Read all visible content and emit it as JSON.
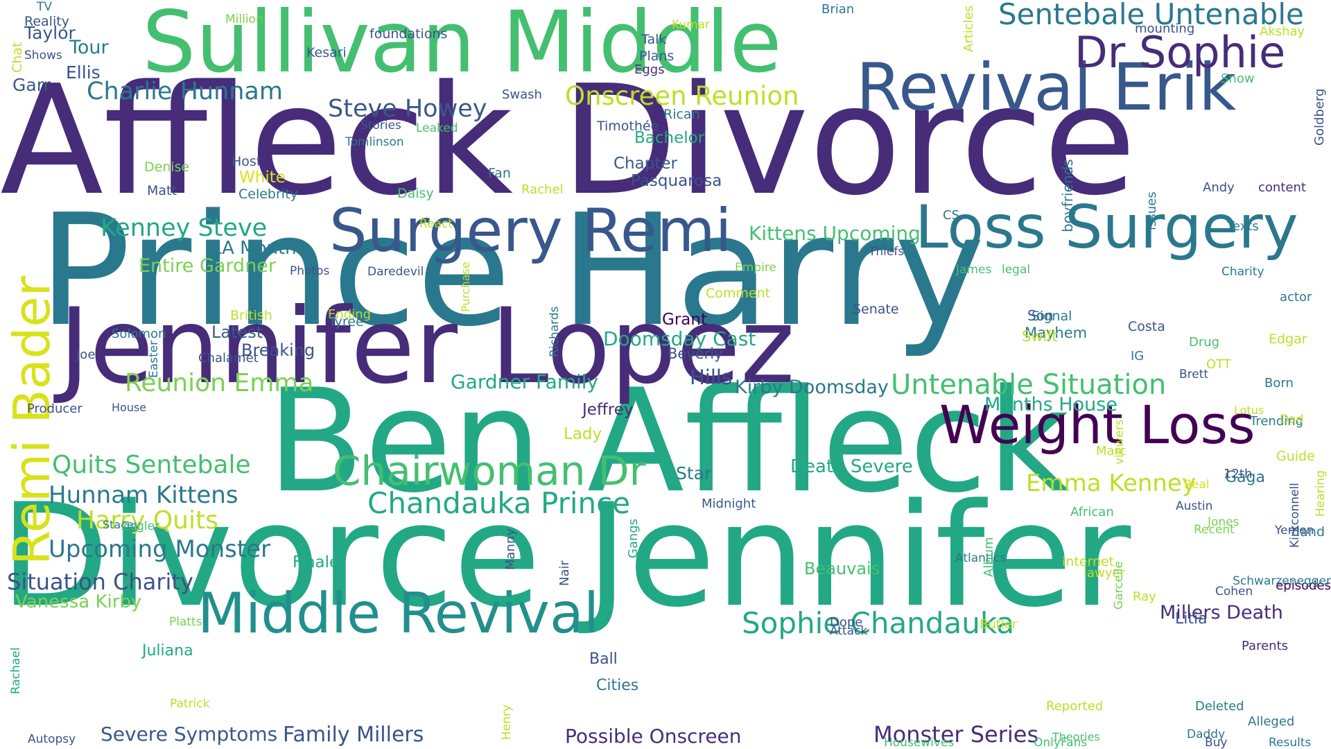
{
  "words": [
    {
      "text": "Prince Harry",
      "color": "#2a788e"
    },
    {
      "text": "Affleck Divorce",
      "color": "#472c7a"
    },
    {
      "text": "Divorce Jennifer",
      "color": "#22a884"
    },
    {
      "text": "Ben Affleck",
      "color": "#22a884"
    },
    {
      "text": "Jennifer Lopez",
      "color": "#472c7a"
    },
    {
      "text": "Sullivan Middle",
      "color": "#44bf70"
    },
    {
      "text": "Revival Erik",
      "color": "#38588c"
    },
    {
      "text": "Surgery Remi",
      "color": "#38588c"
    },
    {
      "text": "Loss Surgery",
      "color": "#2a788e"
    },
    {
      "text": "Weight Loss",
      "color": "#440154"
    },
    {
      "text": "Middle Revival",
      "color": "#21908d"
    },
    {
      "text": "Dr Sophie",
      "color": "#472c7a"
    },
    {
      "text": "Chairwoman Dr",
      "color": "#44bf70"
    },
    {
      "text": "Remi Bader",
      "color": "#d8e219"
    },
    {
      "text": "Sentebale Untenable",
      "color": "#2a788e"
    },
    {
      "text": "Charlie Hunnam",
      "color": "#2a788e"
    },
    {
      "text": "Steve Howey",
      "color": "#38588c"
    },
    {
      "text": "Kenney Steve",
      "color": "#22a884"
    },
    {
      "text": "Onscreen Reunion",
      "color": "#bddf26"
    },
    {
      "text": "Untenable Situation",
      "color": "#44bf70"
    },
    {
      "text": "Sophie Chandauka",
      "color": "#22a884"
    },
    {
      "text": "Chandauka Prince",
      "color": "#22a884"
    },
    {
      "text": "Quits Sentebale",
      "color": "#44bf70"
    },
    {
      "text": "Hunnam Kittens",
      "color": "#2a788e"
    },
    {
      "text": "Harry Quits",
      "color": "#bddf26"
    },
    {
      "text": "Upcoming Monster",
      "color": "#2a788e"
    },
    {
      "text": "Situation Charity",
      "color": "#3b528b"
    },
    {
      "text": "Vanessa Kirby",
      "color": "#7ad151"
    },
    {
      "text": "Reunion Emma",
      "color": "#7ad151"
    },
    {
      "text": "Emma Kenney",
      "color": "#bddf26"
    },
    {
      "text": "Gardner Family",
      "color": "#22a884"
    },
    {
      "text": "Kittens Upcoming",
      "color": "#44bf70"
    },
    {
      "text": "Doomsday Cast",
      "color": "#22a884"
    },
    {
      "text": "Kirby Doomsday",
      "color": "#2a788e"
    },
    {
      "text": "Months House",
      "color": "#22a884"
    },
    {
      "text": "Millers Death",
      "color": "#472c7a"
    },
    {
      "text": "Death Severe",
      "color": "#22a884"
    },
    {
      "text": "Severe Symptoms",
      "color": "#38588c"
    },
    {
      "text": "Family Millers",
      "color": "#3b528b"
    },
    {
      "text": "Monster Series",
      "color": "#472c7a"
    },
    {
      "text": "Possible Onscreen",
      "color": "#472c7a"
    },
    {
      "text": "Entire Gardner",
      "color": "#7ad151"
    },
    {
      "text": "LA Months",
      "color": "#2a788e"
    },
    {
      "text": "Latest",
      "color": "#38588c"
    },
    {
      "text": "Breaking",
      "color": "#3b528b"
    },
    {
      "text": "Tour",
      "color": "#2a788e"
    },
    {
      "text": "Taylor",
      "color": "#38588c"
    },
    {
      "text": "Ellis",
      "color": "#3b528b"
    },
    {
      "text": "Garr",
      "color": "#38588c"
    },
    {
      "text": "White",
      "color": "#d8e219"
    },
    {
      "text": "Hills",
      "color": "#3b528b"
    },
    {
      "text": "Star",
      "color": "#2a788e"
    },
    {
      "text": "Jeffrey",
      "color": "#472c7a"
    },
    {
      "text": "Lady",
      "color": "#bddf26"
    },
    {
      "text": "Beverly",
      "color": "#3b528b"
    },
    {
      "text": "Grant",
      "color": "#440154"
    },
    {
      "text": "Chapter",
      "color": "#38588c"
    },
    {
      "text": "Pasquarosa",
      "color": "#3b528b"
    },
    {
      "text": "Bachelor",
      "color": "#22a884"
    },
    {
      "text": "Finale",
      "color": "#22a884"
    },
    {
      "text": "Beauvais",
      "color": "#44bf70"
    },
    {
      "text": "Gaga",
      "color": "#2a788e"
    },
    {
      "text": "Litia",
      "color": "#3b528b"
    },
    {
      "text": "Ball",
      "color": "#3b528b"
    },
    {
      "text": "Cities",
      "color": "#2a788e"
    },
    {
      "text": "Juliana",
      "color": "#22a884"
    },
    {
      "text": "Mayhem",
      "color": "#2a788e"
    },
    {
      "text": "Swift",
      "color": "#bddf26"
    },
    {
      "text": "Son",
      "color": "#3b528b"
    },
    {
      "text": "TV",
      "color": "#2a788e"
    },
    {
      "text": "Reality",
      "color": "#3b528b"
    },
    {
      "text": "Shows",
      "color": "#3b528b"
    },
    {
      "text": "Million",
      "color": "#7ad151"
    },
    {
      "text": "foundations",
      "color": "#3b528b"
    },
    {
      "text": "Kesari",
      "color": "#38588c"
    },
    {
      "text": "Kumar",
      "color": "#bddf26"
    },
    {
      "text": "Talk",
      "color": "#3b528b"
    },
    {
      "text": "Plans",
      "color": "#38588c"
    },
    {
      "text": "Eggs",
      "color": "#472c7a"
    },
    {
      "text": "Brian",
      "color": "#2a788e"
    },
    {
      "text": "mounting",
      "color": "#3b528b"
    },
    {
      "text": "Akshay",
      "color": "#bddf26"
    },
    {
      "text": "Snow",
      "color": "#44bf70"
    },
    {
      "text": "Swash",
      "color": "#3b528b"
    },
    {
      "text": "Rican",
      "color": "#2a788e"
    },
    {
      "text": "Timothée",
      "color": "#3b528b"
    },
    {
      "text": "Stories",
      "color": "#3b528b"
    },
    {
      "text": "Leaked",
      "color": "#44bf70"
    },
    {
      "text": "Tomlinson",
      "color": "#2a788e"
    },
    {
      "text": "Denise",
      "color": "#7ad151"
    },
    {
      "text": "Host",
      "color": "#3b528b"
    },
    {
      "text": "Matt",
      "color": "#3b528b"
    },
    {
      "text": "Celebrity",
      "color": "#2a788e"
    },
    {
      "text": "Fan",
      "color": "#2a788e"
    },
    {
      "text": "Daisy",
      "color": "#44bf70"
    },
    {
      "text": "Rachel",
      "color": "#bddf26"
    },
    {
      "text": "Andy",
      "color": "#3b528b"
    },
    {
      "text": "content",
      "color": "#472c7a"
    },
    {
      "text": "CS",
      "color": "#2a788e"
    },
    {
      "text": "Texts",
      "color": "#2a788e"
    },
    {
      "text": "React",
      "color": "#bddf26"
    },
    {
      "text": "Photos",
      "color": "#3b528b"
    },
    {
      "text": "Daredevil",
      "color": "#3b528b"
    },
    {
      "text": "Thiefs",
      "color": "#3b528b"
    },
    {
      "text": "Empire",
      "color": "#7ad151"
    },
    {
      "text": "James",
      "color": "#44bf70"
    },
    {
      "text": "legal",
      "color": "#44bf70"
    },
    {
      "text": "Charity",
      "color": "#2a788e"
    },
    {
      "text": "Comment",
      "color": "#bddf26"
    },
    {
      "text": "actor",
      "color": "#2a788e"
    },
    {
      "text": "Ending",
      "color": "#bddf26"
    },
    {
      "text": "Senate",
      "color": "#3b528b"
    },
    {
      "text": "Signal",
      "color": "#2a788e"
    },
    {
      "text": "Solomon",
      "color": "#2a788e"
    },
    {
      "text": "British",
      "color": "#bddf26"
    },
    {
      "text": "Tyree",
      "color": "#2a788e"
    },
    {
      "text": "Costa",
      "color": "#3b528b"
    },
    {
      "text": "Drug",
      "color": "#44bf70"
    },
    {
      "text": "Joe",
      "color": "#3b528b"
    },
    {
      "text": "Edgar",
      "color": "#bddf26"
    },
    {
      "text": "IG",
      "color": "#2a788e"
    },
    {
      "text": "Born",
      "color": "#2a788e"
    },
    {
      "text": "Chalamet",
      "color": "#3b528b"
    },
    {
      "text": "OTT",
      "color": "#bddf26"
    },
    {
      "text": "Brett",
      "color": "#3b528b"
    },
    {
      "text": "House",
      "color": "#3b528b"
    },
    {
      "text": "Lotus",
      "color": "#bddf26"
    },
    {
      "text": "Trending",
      "color": "#2a788e"
    },
    {
      "text": "Dad",
      "color": "#bddf26"
    },
    {
      "text": "Marc",
      "color": "#bddf26"
    },
    {
      "text": "12th",
      "color": "#3b528b"
    },
    {
      "text": "Real",
      "color": "#d8e219"
    },
    {
      "text": "Producer",
      "color": "#3b528b"
    },
    {
      "text": "Guide",
      "color": "#bddf26"
    },
    {
      "text": "internet",
      "color": "#bddf26"
    },
    {
      "text": "Midnight",
      "color": "#38588c"
    },
    {
      "text": "African",
      "color": "#44bf70"
    },
    {
      "text": "lawyer",
      "color": "#bddf26"
    },
    {
      "text": "Ray",
      "color": "#bddf26"
    },
    {
      "text": "Cohen",
      "color": "#3b528b"
    },
    {
      "text": "Recent",
      "color": "#7ad151"
    },
    {
      "text": "Jones",
      "color": "#7ad151"
    },
    {
      "text": "Austin",
      "color": "#3b528b"
    },
    {
      "text": "Yemen",
      "color": "#3b528b"
    },
    {
      "text": "land",
      "color": "#2a788e"
    },
    {
      "text": "episodes",
      "color": "#440154"
    },
    {
      "text": "Stacey",
      "color": "#2a788e"
    },
    {
      "text": "Zegler",
      "color": "#44bf70"
    },
    {
      "text": "Platts",
      "color": "#7ad151"
    },
    {
      "text": "Patrick",
      "color": "#bddf26"
    },
    {
      "text": "Dope",
      "color": "#3b528b"
    },
    {
      "text": "Attack",
      "color": "#3b528b"
    },
    {
      "text": "Butler",
      "color": "#bddf26"
    },
    {
      "text": "Atlantics",
      "color": "#2a788e"
    },
    {
      "text": "Schwarzenegger",
      "color": "#2a788e"
    },
    {
      "text": "Theories",
      "color": "#44bf70"
    },
    {
      "text": "OnlyFans",
      "color": "#44bf70"
    },
    {
      "text": "Reported",
      "color": "#bddf26"
    },
    {
      "text": "Deleted",
      "color": "#2a788e"
    },
    {
      "text": "Parents",
      "color": "#472c7a"
    },
    {
      "text": "Alleged",
      "color": "#2a788e"
    },
    {
      "text": "Daddy",
      "color": "#2a788e"
    },
    {
      "text": "Results",
      "color": "#2a788e"
    },
    {
      "text": "Autopsy",
      "color": "#3b528b"
    },
    {
      "text": "Housewives",
      "color": "#44bf70"
    },
    {
      "text": "Buy",
      "color": "#3b528b"
    },
    {
      "text": "Chat",
      "color": "#bddf26"
    },
    {
      "text": "Articles",
      "color": "#bddf26"
    },
    {
      "text": "Goldberg",
      "color": "#3b528b"
    },
    {
      "text": "boyfriends",
      "color": "#2a788e"
    },
    {
      "text": "issues",
      "color": "#2a788e"
    },
    {
      "text": "Purchase",
      "color": "#bddf26"
    },
    {
      "text": "Easter",
      "color": "#2a788e"
    },
    {
      "text": "Richards",
      "color": "#2a788e"
    },
    {
      "text": "viewers",
      "color": "#bddf26"
    },
    {
      "text": "Hearing",
      "color": "#bddf26"
    },
    {
      "text": "Kirkconnell",
      "color": "#3b528b"
    },
    {
      "text": "Album",
      "color": "#44bf70"
    },
    {
      "text": "Gangs",
      "color": "#22a884"
    },
    {
      "text": "Manny",
      "color": "#3b528b"
    },
    {
      "text": "Nair",
      "color": "#3b528b"
    },
    {
      "text": "Garcelle",
      "color": "#7ad151"
    },
    {
      "text": "Rachael",
      "color": "#22a884"
    },
    {
      "text": "Henry",
      "color": "#bddf26"
    }
  ]
}
